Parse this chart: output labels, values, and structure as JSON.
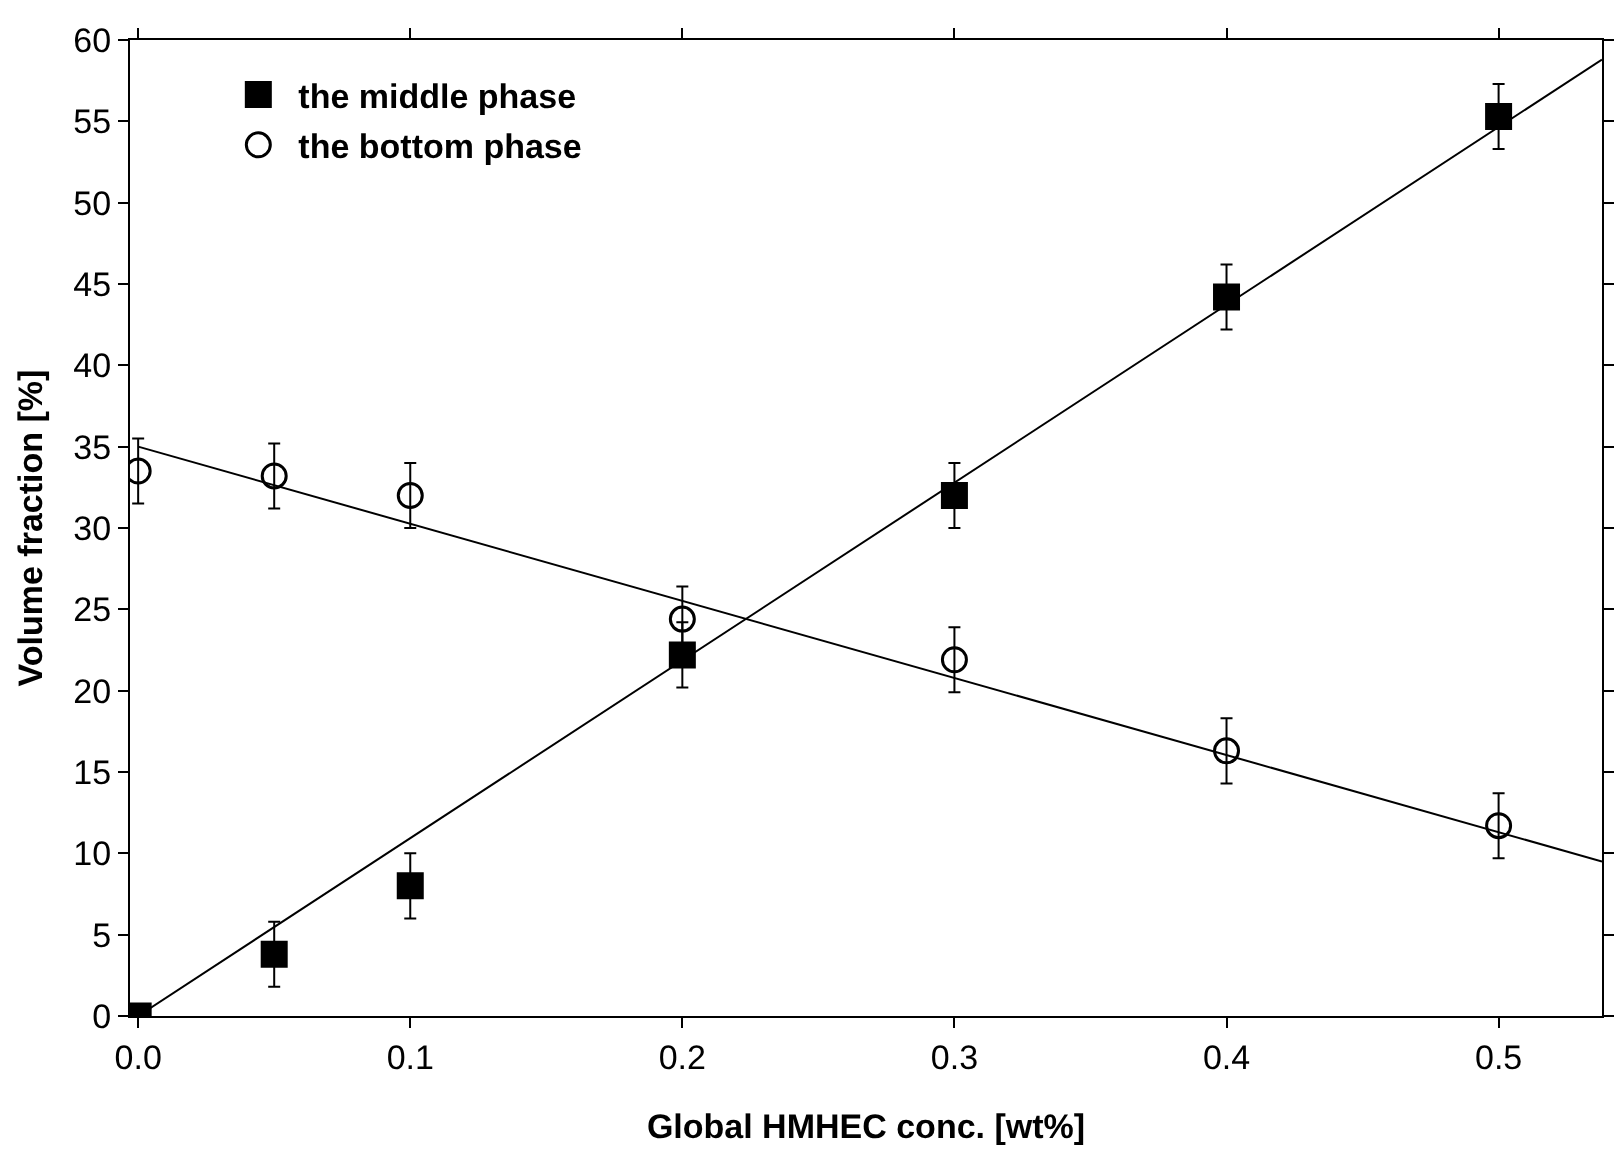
{
  "chart_data": {
    "type": "scatter",
    "xlabel": "Global HMHEC conc. [wt%]",
    "ylabel": "Volume fraction [%]",
    "xlim": [
      -0.003,
      0.538
    ],
    "xticks": [
      {
        "value": 0,
        "label": "0.0"
      },
      0.1,
      0.2,
      0.3,
      0.4,
      0.5
    ],
    "ylim": [
      0,
      60
    ],
    "yticks": [
      0,
      5,
      10,
      15,
      20,
      25,
      30,
      35,
      40,
      45,
      50,
      55,
      60
    ],
    "grid": false,
    "legend": "top left",
    "series": [
      {
        "name": "the middle phase",
        "marker": "square",
        "color": "#000000",
        "x": [
          0,
          0.05,
          0.1,
          0.2,
          0.3,
          0.4,
          0.5
        ],
        "values": [
          0,
          3.8,
          8,
          22.2,
          32,
          44.2,
          55.3
        ],
        "errors": [
          null,
          2,
          2,
          2,
          2,
          2,
          2
        ]
      },
      {
        "name": "the bottom phase",
        "marker": "circle",
        "color": "#000000",
        "x": [
          0,
          0.05,
          0.1,
          0.2,
          0.3,
          0.4,
          0.5
        ],
        "values": [
          33.5,
          33.2,
          32,
          24.4,
          21.9,
          16.3,
          11.7
        ],
        "errors": [
          2,
          2,
          2,
          2,
          2,
          2,
          2
        ]
      },
      {
        "type": "line",
        "marker": "none",
        "color": "#000000",
        "x": [
          0,
          0.538
        ],
        "values": [
          0,
          58.8
        ]
      },
      {
        "type": "line",
        "marker": "none",
        "color": "#000000",
        "x": [
          0,
          0.538
        ],
        "values": [
          35,
          9.5
        ]
      }
    ]
  }
}
